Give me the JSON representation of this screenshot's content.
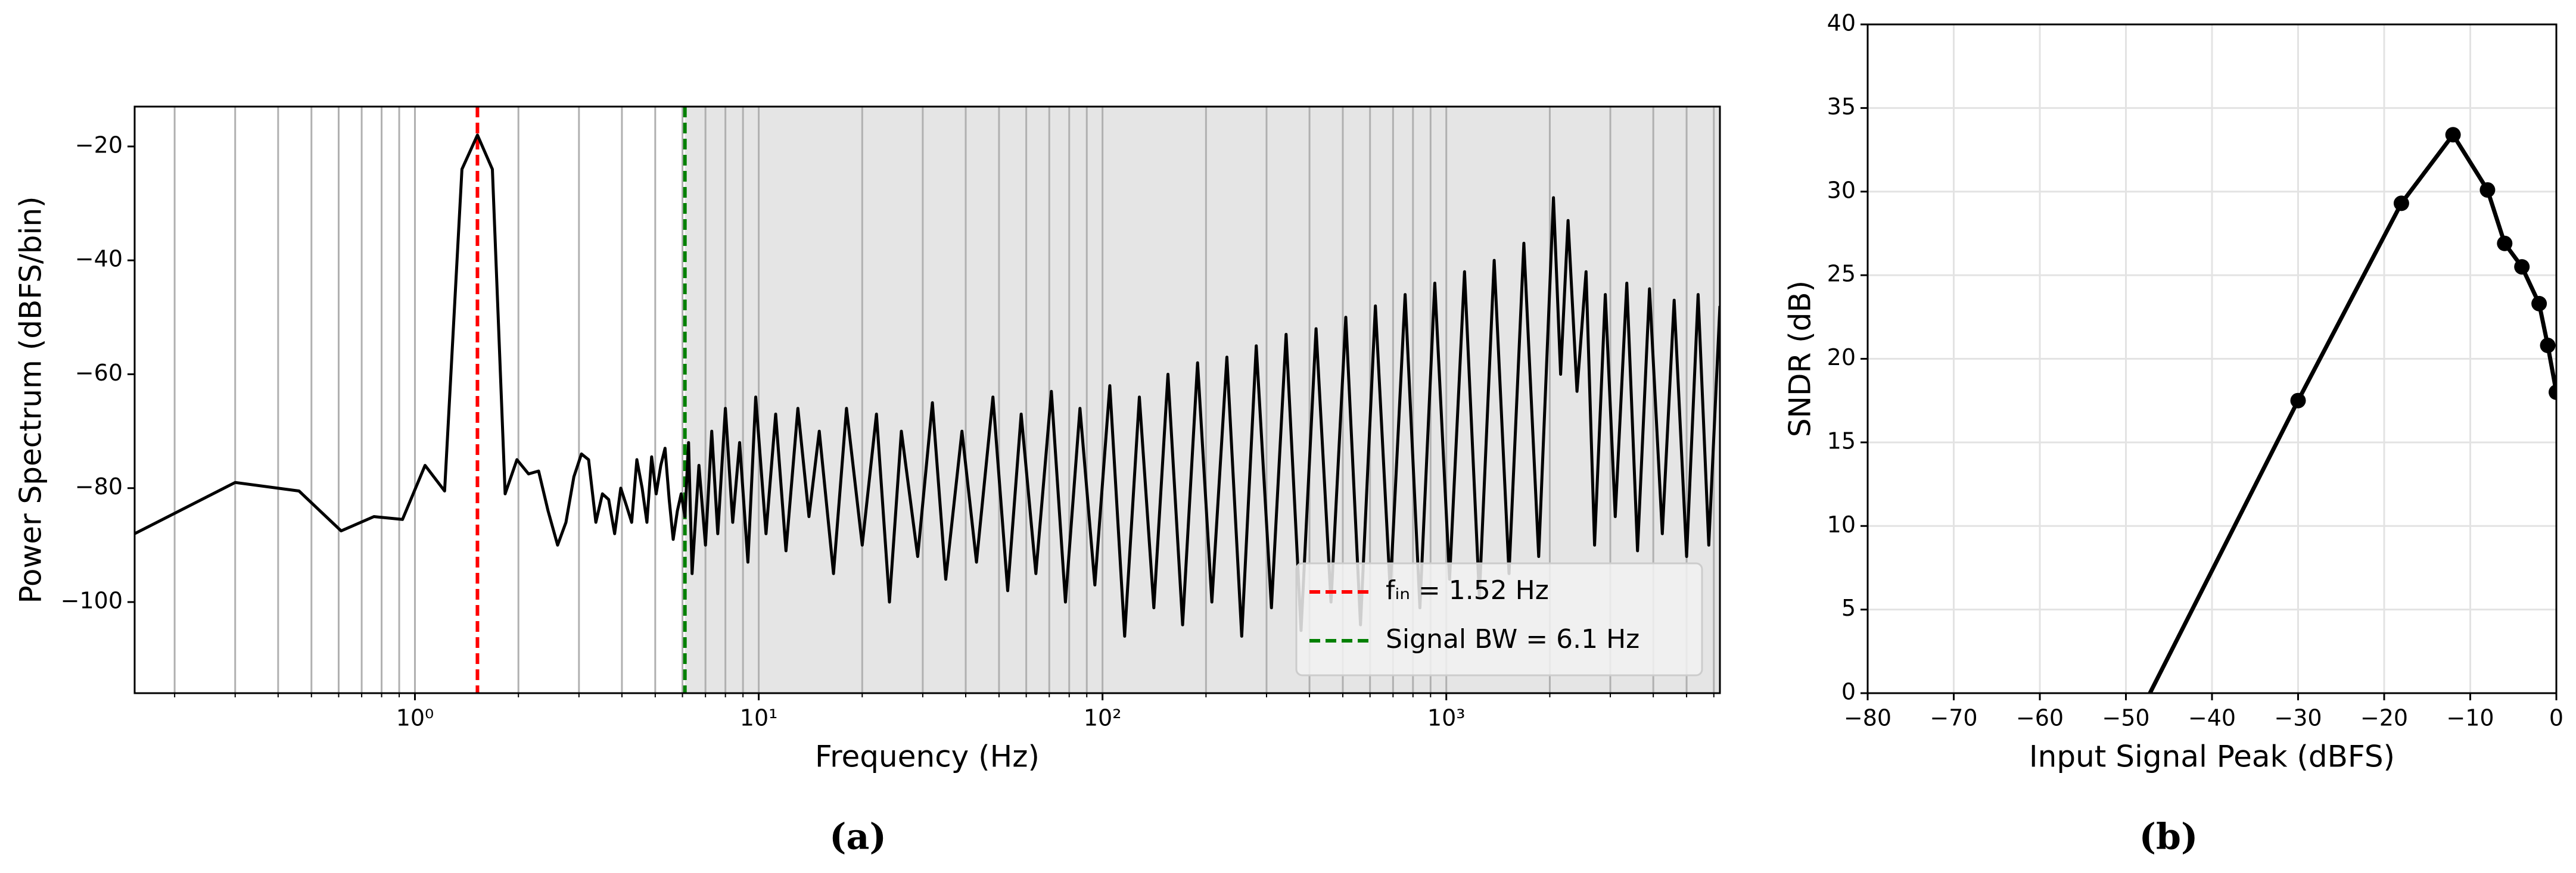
{
  "chart_data": [
    {
      "type": "line",
      "caption": "(a)",
      "xlabel": "Frequency (Hz)",
      "ylabel": "Power Spectrum  (dBFS/bin)",
      "xscale": "log",
      "xlim": [
        0.153,
        6250
      ],
      "ylim": [
        -116,
        -13
      ],
      "xticks": [
        {
          "value": 1,
          "label": "10⁰"
        },
        {
          "value": 10,
          "label": "10¹"
        },
        {
          "value": 100,
          "label": "10²"
        },
        {
          "value": 1000,
          "label": "10³"
        }
      ],
      "xminor": [
        0.2,
        0.3,
        0.4,
        0.5,
        0.6,
        0.7,
        0.8,
        0.9,
        2,
        3,
        4,
        5,
        6,
        7,
        8,
        9,
        20,
        30,
        40,
        50,
        60,
        70,
        80,
        90,
        200,
        300,
        400,
        500,
        600,
        700,
        800,
        900,
        2000,
        3000,
        4000,
        5000,
        6000
      ],
      "yticks": [
        {
          "value": -100,
          "label": "−100"
        },
        {
          "value": -80,
          "label": "−80"
        },
        {
          "value": -60,
          "label": "−60"
        },
        {
          "value": -40,
          "label": "−40"
        },
        {
          "value": -20,
          "label": "−20"
        }
      ],
      "grid": "x",
      "shade": [
        6.1,
        6250
      ],
      "shade_color": "#e5e5e5",
      "legend": "lower right",
      "series": [
        {
          "color": "#000000",
          "x": [
            0.153,
            0.3,
            0.46,
            0.61,
            0.76,
            0.92,
            1.07,
            1.22,
            1.37,
            1.52,
            1.68,
            1.83,
            1.98,
            2.14,
            2.29,
            2.44,
            2.6,
            2.75,
            2.9,
            3.05,
            3.2,
            3.36,
            3.51,
            3.66,
            3.81,
            3.97,
            4.12,
            4.27,
            4.42,
            4.58,
            4.73,
            4.88,
            5.03,
            5.19,
            5.34,
            5.49,
            5.64,
            5.8,
            5.95,
            6.1,
            6.25,
            6.4,
            6.7,
            7.0,
            7.3,
            7.6,
            8.0,
            8.4,
            8.8,
            9.3,
            9.8,
            10.5,
            11.2,
            12,
            13,
            14,
            15,
            16.5,
            18,
            20,
            22,
            24,
            26,
            29,
            32,
            35,
            39,
            43,
            48,
            53,
            58,
            64,
            71,
            78,
            86,
            95,
            105,
            116,
            128,
            141,
            155,
            171,
            189,
            208,
            230,
            254,
            280,
            310,
            342,
            378,
            418,
            462,
            510,
            563,
            622,
            687,
            759,
            838,
            926,
            1022,
            1130,
            1248,
            1378,
            1522,
            1681,
            1857,
            2050,
            2150,
            2260,
            2400,
            2550,
            2700,
            2900,
            3100,
            3350,
            3600,
            3900,
            4250,
            4600,
            5000,
            5400,
            5800,
            6250
          ],
          "values": [
            -88,
            -79,
            -80.5,
            -87.5,
            -85,
            -85.5,
            -76,
            -80.5,
            -24,
            -18,
            -24,
            -81,
            -75,
            -77.5,
            -77,
            -84,
            -90,
            -86,
            -78,
            -74,
            -75,
            -86,
            -81,
            -82,
            -88,
            -80,
            -83,
            -86,
            -75,
            -80,
            -86,
            -74.5,
            -81,
            -76,
            -73,
            -82,
            -89,
            -84,
            -81,
            -85,
            -72,
            -95,
            -76,
            -90,
            -70,
            -88,
            -66,
            -86,
            -72,
            -93,
            -64,
            -88,
            -67,
            -91,
            -66,
            -85,
            -70,
            -95,
            -66,
            -90,
            -67,
            -100,
            -70,
            -92,
            -65,
            -96,
            -70,
            -93,
            -64,
            -98,
            -67,
            -95,
            -63,
            -100,
            -66,
            -97,
            -62,
            -106,
            -64,
            -101,
            -60,
            -104,
            -58,
            -100,
            -57,
            -106,
            -55,
            -101,
            -53,
            -105,
            -52,
            -100,
            -50,
            -104,
            -48,
            -98,
            -46,
            -101,
            -44,
            -96,
            -42,
            -99,
            -40,
            -95,
            -37,
            -92,
            -29,
            -60,
            -33,
            -63,
            -42,
            -90,
            -46,
            -85,
            -44,
            -91,
            -45,
            -88,
            -47,
            -92,
            -46,
            -90,
            -48
          ]
        }
      ],
      "vlines": [
        {
          "name": "fᵢₙ = 1.52 Hz",
          "x": 1.52,
          "color": "#ff0000"
        },
        {
          "name": "Signal BW = 6.1 Hz",
          "x": 6.1,
          "color": "#008000"
        }
      ]
    },
    {
      "type": "line",
      "caption": "(b)",
      "xlabel": "Input Signal Peak (dBFS)",
      "ylabel": "SNDR (dB)",
      "xscale": "linear",
      "xlim": [
        -80,
        0
      ],
      "ylim": [
        0,
        40
      ],
      "xticks": [
        {
          "value": -80,
          "label": "−80"
        },
        {
          "value": -70,
          "label": "−70"
        },
        {
          "value": -60,
          "label": "−60"
        },
        {
          "value": -50,
          "label": "−50"
        },
        {
          "value": -40,
          "label": "−40"
        },
        {
          "value": -30,
          "label": "−30"
        },
        {
          "value": -20,
          "label": "−20"
        },
        {
          "value": -10,
          "label": "−10"
        },
        0
      ],
      "yticks": [
        0,
        5,
        10,
        15,
        20,
        25,
        30,
        35,
        40
      ],
      "grid": "both",
      "markers": true,
      "series": [
        {
          "color": "#000000",
          "x": [
            -48,
            -30,
            -18,
            -12,
            -8,
            -6,
            -4,
            -2,
            -1,
            0
          ],
          "values": [
            -0.8,
            17.5,
            29.3,
            33.4,
            30.1,
            26.9,
            25.5,
            23.3,
            20.8,
            18
          ]
        }
      ]
    }
  ]
}
